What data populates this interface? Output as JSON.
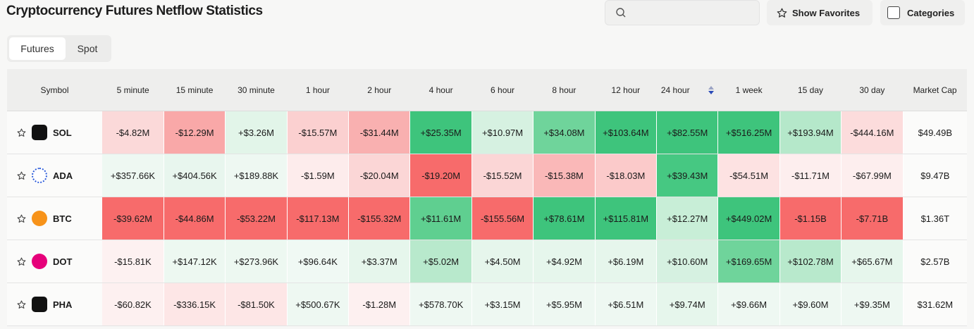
{
  "header": {
    "title": "Cryptocurrency Futures Netflow Statistics",
    "show_favorites": "Show Favorites",
    "categories": "Categories"
  },
  "tabs": [
    "Futures",
    "Spot"
  ],
  "table": {
    "columns": [
      "Symbol",
      "5 minute",
      "15 minute",
      "30 minute",
      "1 hour",
      "2 hour",
      "4 hour",
      "6 hour",
      "8 hour",
      "12 hour",
      "24 hour",
      "1 week",
      "15 day",
      "30 day",
      "Market Cap"
    ],
    "rows": [
      {
        "symbol": "SOL",
        "cells": [
          "-$4.82M",
          "-$12.29M",
          "+$3.26M",
          "-$15.57M",
          "-$31.44M",
          "+$25.35M",
          "+$10.97M",
          "+$34.08M",
          "+$103.64M",
          "+$82.55M",
          "+$516.25M",
          "+$193.94M",
          "-$444.16M"
        ],
        "market_cap": "$49.49B",
        "colors": [
          "#fbd9d9",
          "#f9a8a8",
          "#e2f5e9",
          "#fbd0d0",
          "#f9b0b0",
          "#3ec47c",
          "#d6f1e1",
          "#6fd49b",
          "#3ec47c",
          "#3ec47c",
          "#3ec47c",
          "#b5e8ca",
          "#fcdcdc"
        ]
      },
      {
        "symbol": "ADA",
        "cells": [
          "+$357.66K",
          "+$404.56K",
          "+$189.88K",
          "-$1.59M",
          "-$20.04M",
          "-$19.20M",
          "-$15.52M",
          "-$15.38M",
          "-$18.03M",
          "+$39.43M",
          "-$54.51M",
          "-$11.71M",
          "-$67.99M"
        ],
        "market_cap": "$9.47B",
        "colors": [
          "#eef8f2",
          "#e8f6ee",
          "#eef8f2",
          "#fdecec",
          "#fbd6d6",
          "#f76b6b",
          "#fbd6d6",
          "#fab8b8",
          "#fbcaca",
          "#46c882",
          "#fde2e2",
          "#fdeeee",
          "#fdeeee"
        ]
      },
      {
        "symbol": "BTC",
        "cells": [
          "-$39.62M",
          "-$44.86M",
          "-$53.22M",
          "-$117.13M",
          "-$155.32M",
          "+$11.61M",
          "-$155.56M",
          "+$78.61M",
          "+$115.81M",
          "+$12.27M",
          "+$449.02M",
          "-$1.15B",
          "-$7.71B"
        ],
        "market_cap": "$1.36T",
        "colors": [
          "#f76b6b",
          "#f76b6b",
          "#f76b6b",
          "#f76b6b",
          "#f76b6b",
          "#5fcf90",
          "#f76b6b",
          "#3ec47c",
          "#3ec47c",
          "#c8eed7",
          "#3ec47c",
          "#f76b6b",
          "#f76b6b"
        ]
      },
      {
        "symbol": "DOT",
        "cells": [
          "-$15.81K",
          "+$147.12K",
          "+$273.96K",
          "+$96.64K",
          "+$3.37M",
          "+$5.02M",
          "+$4.50M",
          "+$4.92M",
          "+$6.19M",
          "+$10.60M",
          "+$169.65M",
          "+$102.78M",
          "+$65.67M"
        ],
        "market_cap": "$2.57B",
        "colors": [
          "#fdf1f1",
          "#edf8f1",
          "#edf8f1",
          "#f0f9f4",
          "#e6f6ec",
          "#b8e9cc",
          "#e6f6ec",
          "#e6f6ec",
          "#e6f6ec",
          "#d6f1e1",
          "#6fd49b",
          "#b8e9cc",
          "#e6f6ec"
        ]
      },
      {
        "symbol": "PHA",
        "cells": [
          "-$60.82K",
          "-$336.15K",
          "-$81.50K",
          "+$500.67K",
          "-$1.28M",
          "+$578.70K",
          "+$3.15M",
          "+$5.95M",
          "+$6.51M",
          "+$9.74M",
          "+$9.66M",
          "+$9.60M",
          "+$9.35M"
        ],
        "market_cap": "$31.62M",
        "colors": [
          "#fdf0f0",
          "#fde6e6",
          "#fde6e6",
          "#eef8f2",
          "#fdf0f0",
          "#eef8f2",
          "#eef8f2",
          "#eef8f2",
          "#eef8f2",
          "#e6f6ec",
          "#eef8f2",
          "#eef8f2",
          "#eef8f2"
        ]
      }
    ]
  }
}
